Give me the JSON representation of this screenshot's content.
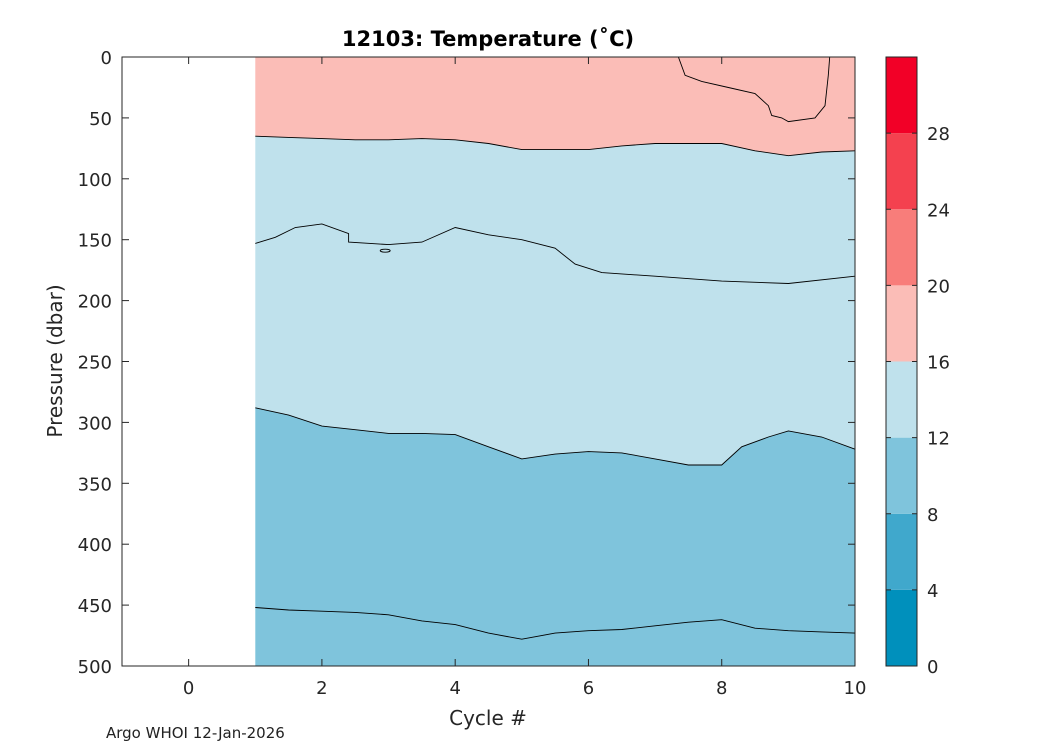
{
  "chart_data": {
    "type": "contour",
    "title": "12103:  Temperature (˚C)",
    "xlabel": "Cycle #",
    "ylabel": "Pressure (dbar)",
    "xlim": [
      -1,
      10
    ],
    "ylim": [
      0,
      500
    ],
    "y_reversed": true,
    "data_x_range": [
      1,
      10
    ],
    "xticks": [
      0,
      2,
      4,
      6,
      8,
      10
    ],
    "yticks": [
      0,
      50,
      100,
      150,
      200,
      250,
      300,
      350,
      400,
      450,
      500
    ],
    "colorbar": {
      "range": [
        0,
        32
      ],
      "ticks": [
        0,
        4,
        8,
        12,
        16,
        20,
        24,
        28
      ],
      "bands": [
        {
          "from": 0,
          "to": 4,
          "color": "#0090bc"
        },
        {
          "from": 4,
          "to": 8,
          "color": "#40a8cc"
        },
        {
          "from": 8,
          "to": 12,
          "color": "#7fc4dc"
        },
        {
          "from": 12,
          "to": 16,
          "color": "#bfe1ec"
        },
        {
          "from": 16,
          "to": 20,
          "color": "#fbbdb7"
        },
        {
          "from": 20,
          "to": 24,
          "color": "#f87d7a"
        },
        {
          "from": 24,
          "to": 28,
          "color": "#f4414f"
        },
        {
          "from": 28,
          "to": 32,
          "color": "#f20027"
        }
      ]
    },
    "contours": [
      {
        "name": "warm-pocket",
        "fill_band": "16-20",
        "points": [
          [
            7.35,
            0
          ],
          [
            7.45,
            15
          ],
          [
            7.7,
            20
          ],
          [
            8.1,
            25
          ],
          [
            8.5,
            30
          ],
          [
            8.7,
            40
          ],
          [
            8.75,
            48
          ],
          [
            8.9,
            50
          ],
          [
            9.0,
            53
          ],
          [
            9.4,
            50
          ],
          [
            9.55,
            40
          ],
          [
            9.6,
            15
          ],
          [
            9.62,
            0
          ]
        ]
      },
      {
        "name": "isotherm-16-upper",
        "fill_band": "16-20",
        "points": [
          [
            1,
            65
          ],
          [
            1.5,
            66
          ],
          [
            2,
            67
          ],
          [
            2.5,
            68
          ],
          [
            3,
            68
          ],
          [
            3.5,
            67
          ],
          [
            4,
            68
          ],
          [
            4.5,
            71
          ],
          [
            5,
            76
          ],
          [
            5.5,
            76
          ],
          [
            6,
            76
          ],
          [
            6.5,
            73
          ],
          [
            7,
            71
          ],
          [
            7.5,
            71
          ],
          [
            8,
            71
          ],
          [
            8.5,
            77
          ],
          [
            9,
            81
          ],
          [
            9.5,
            78
          ],
          [
            10,
            77
          ]
        ]
      },
      {
        "name": "isotherm-14",
        "fill_band": "12-16",
        "points": [
          [
            1,
            153
          ],
          [
            1.3,
            148
          ],
          [
            1.6,
            140
          ],
          [
            2,
            137
          ],
          [
            2.4,
            145
          ],
          [
            2.4,
            152
          ],
          [
            3,
            154
          ],
          [
            3.5,
            152
          ],
          [
            4,
            140
          ],
          [
            4.5,
            146
          ],
          [
            5,
            150
          ],
          [
            5.5,
            157
          ],
          [
            5.8,
            170
          ],
          [
            6.2,
            177
          ],
          [
            7,
            180
          ],
          [
            8,
            184
          ],
          [
            9,
            186
          ],
          [
            10,
            180
          ]
        ]
      },
      {
        "name": "isotherm-12",
        "fill_band": "8-12",
        "points": [
          [
            1,
            288
          ],
          [
            1.5,
            294
          ],
          [
            2,
            303
          ],
          [
            2.5,
            306
          ],
          [
            3,
            309
          ],
          [
            3.5,
            309
          ],
          [
            4,
            310
          ],
          [
            4.5,
            320
          ],
          [
            5,
            330
          ],
          [
            5.5,
            326
          ],
          [
            6,
            324
          ],
          [
            6.5,
            325
          ],
          [
            7,
            330
          ],
          [
            7.5,
            335
          ],
          [
            8,
            335
          ],
          [
            8.3,
            320
          ],
          [
            8.7,
            312
          ],
          [
            9,
            307
          ],
          [
            9.5,
            312
          ],
          [
            10,
            322
          ]
        ]
      },
      {
        "name": "isotherm-10",
        "fill_band": "8-12",
        "points": [
          [
            1,
            452
          ],
          [
            1.5,
            454
          ],
          [
            2,
            455
          ],
          [
            2.5,
            456
          ],
          [
            3,
            458
          ],
          [
            3.5,
            463
          ],
          [
            4,
            466
          ],
          [
            4.5,
            473
          ],
          [
            5,
            478
          ],
          [
            5.5,
            473
          ],
          [
            6,
            471
          ],
          [
            6.5,
            470
          ],
          [
            7,
            467
          ],
          [
            7.5,
            464
          ],
          [
            8,
            462
          ],
          [
            8.5,
            469
          ],
          [
            9,
            471
          ],
          [
            9.5,
            472
          ],
          [
            10,
            473
          ]
        ]
      }
    ],
    "small_loop": {
      "x": 2.95,
      "y": 159
    }
  },
  "footer": {
    "credit": "Argo WHOI 12-Jan-2026"
  }
}
